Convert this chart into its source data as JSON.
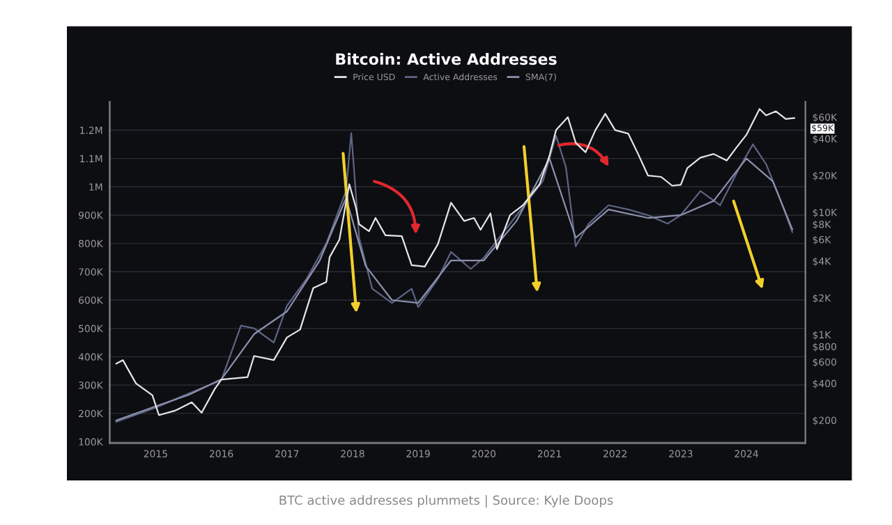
{
  "chart_data": {
    "type": "line",
    "title": "Bitcoin: Active Addresses",
    "annotations": [
      "$59K",
      "BTC active addresses plummets | Source: Kyle Doops"
    ],
    "series": [
      {
        "name": "Price USD",
        "color": "#e6e6e6",
        "axis": "y2",
        "x": [
          2014.4,
          2014.5,
          2014.7,
          2014.95,
          2015.05,
          2015.3,
          2015.55,
          2015.7,
          2015.9,
          2016.0,
          2016.4,
          2016.5,
          2016.8,
          2017.0,
          2017.2,
          2017.4,
          2017.6,
          2017.65,
          2017.8,
          2017.95,
          2018.05,
          2018.1,
          2018.25,
          2018.35,
          2018.5,
          2018.75,
          2018.9,
          2019.1,
          2019.3,
          2019.5,
          2019.7,
          2019.85,
          2019.95,
          2020.1,
          2020.2,
          2020.4,
          2020.6,
          2020.85,
          2021.0,
          2021.1,
          2021.28,
          2021.4,
          2021.55,
          2021.7,
          2021.85,
          2022.0,
          2022.2,
          2022.35,
          2022.5,
          2022.7,
          2022.87,
          2023.0,
          2023.1,
          2023.3,
          2023.5,
          2023.7,
          2023.85,
          2024.0,
          2024.2,
          2024.3,
          2024.45,
          2024.6,
          2024.73
        ],
        "values": [
          580,
          620,
          400,
          320,
          220,
          240,
          280,
          230,
          360,
          430,
          450,
          670,
          620,
          950,
          1100,
          2400,
          2700,
          4300,
          6000,
          17000,
          11000,
          8000,
          7000,
          9000,
          6500,
          6400,
          3700,
          3600,
          5500,
          12000,
          8500,
          9000,
          7200,
          9800,
          5000,
          9500,
          11500,
          17000,
          29000,
          47000,
          60000,
          37000,
          31000,
          47000,
          64000,
          47000,
          44000,
          30000,
          20000,
          19500,
          16500,
          16800,
          23000,
          28000,
          30000,
          26500,
          34000,
          43000,
          70000,
          62000,
          67000,
          58000,
          59000
        ]
      },
      {
        "name": "Active Addresses",
        "color": "#5d6584",
        "x": [
          2014.4,
          2015.0,
          2015.5,
          2016.0,
          2016.3,
          2016.5,
          2016.8,
          2017.0,
          2017.3,
          2017.6,
          2017.9,
          2017.98,
          2018.1,
          2018.3,
          2018.6,
          2018.9,
          2019.0,
          2019.3,
          2019.5,
          2019.8,
          2020.0,
          2020.5,
          2020.9,
          2021.1,
          2021.25,
          2021.4,
          2021.6,
          2021.9,
          2022.2,
          2022.5,
          2022.8,
          2023.0,
          2023.3,
          2023.6,
          2023.9,
          2024.1,
          2024.3,
          2024.5,
          2024.7
        ],
        "values": [
          170000,
          220000,
          270000,
          317000,
          510000,
          500000,
          450000,
          580000,
          675000,
          800000,
          985000,
          1190000,
          820000,
          640000,
          590000,
          640000,
          575000,
          675000,
          770000,
          710000,
          750000,
          900000,
          1020000,
          1180000,
          1070000,
          790000,
          870000,
          935000,
          920000,
          900000,
          870000,
          900000,
          985000,
          935000,
          1070000,
          1150000,
          1080000,
          965000,
          840000
        ]
      },
      {
        "name": "SMA(7)",
        "color": "#8a91ad",
        "x": [
          2014.4,
          2015.0,
          2015.5,
          2016.0,
          2016.5,
          2017.0,
          2017.5,
          2017.9,
          2018.2,
          2018.6,
          2019.0,
          2019.5,
          2020.0,
          2020.5,
          2021.0,
          2021.4,
          2021.9,
          2022.5,
          2023.0,
          2023.5,
          2024.0,
          2024.4,
          2024.7
        ],
        "values": [
          175000,
          225000,
          265000,
          320000,
          480000,
          560000,
          740000,
          960000,
          720000,
          600000,
          590000,
          740000,
          740000,
          880000,
          1100000,
          820000,
          920000,
          890000,
          900000,
          950000,
          1100000,
          1020000,
          850000
        ]
      }
    ],
    "xlim": [
      2014.3,
      2024.9
    ],
    "xticks": [
      2015,
      2016,
      2017,
      2018,
      2019,
      2020,
      2021,
      2022,
      2023,
      2024
    ],
    "ylim": [
      95000,
      1300000
    ],
    "yticks": [
      {
        "value": 100000,
        "label": "100K"
      },
      {
        "value": 200000,
        "label": "200K"
      },
      {
        "value": 300000,
        "label": "300K"
      },
      {
        "value": 400000,
        "label": "400K"
      },
      {
        "value": 500000,
        "label": "500K"
      },
      {
        "value": 600000,
        "label": "600K"
      },
      {
        "value": 700000,
        "label": "700K"
      },
      {
        "value": 800000,
        "label": "800K"
      },
      {
        "value": 900000,
        "label": "900K"
      },
      {
        "value": 1000000,
        "label": "1M"
      },
      {
        "value": 1100000,
        "label": "1.1M"
      },
      {
        "value": 1200000,
        "label": "1.2M"
      }
    ],
    "y2lim": [
      130,
      80000
    ],
    "y2ticks": [
      {
        "value": 200,
        "label": "$200"
      },
      {
        "value": 400,
        "label": "$400"
      },
      {
        "value": 600,
        "label": "$600"
      },
      {
        "value": 800,
        "label": "$800"
      },
      {
        "value": 1000,
        "label": "$1K"
      },
      {
        "value": 2000,
        "label": "$2K"
      },
      {
        "value": 4000,
        "label": "$4K"
      },
      {
        "value": 6000,
        "label": "$6K"
      },
      {
        "value": 8000,
        "label": "$8K"
      },
      {
        "value": 10000,
        "label": "$10K"
      },
      {
        "value": 20000,
        "label": "$20K"
      },
      {
        "value": 40000,
        "label": "$40K"
      },
      {
        "value": 60000,
        "label": "$60K"
      }
    ],
    "log": "y2",
    "grid": "y",
    "legend": "top",
    "line_style": "solid",
    "marker": "none"
  }
}
